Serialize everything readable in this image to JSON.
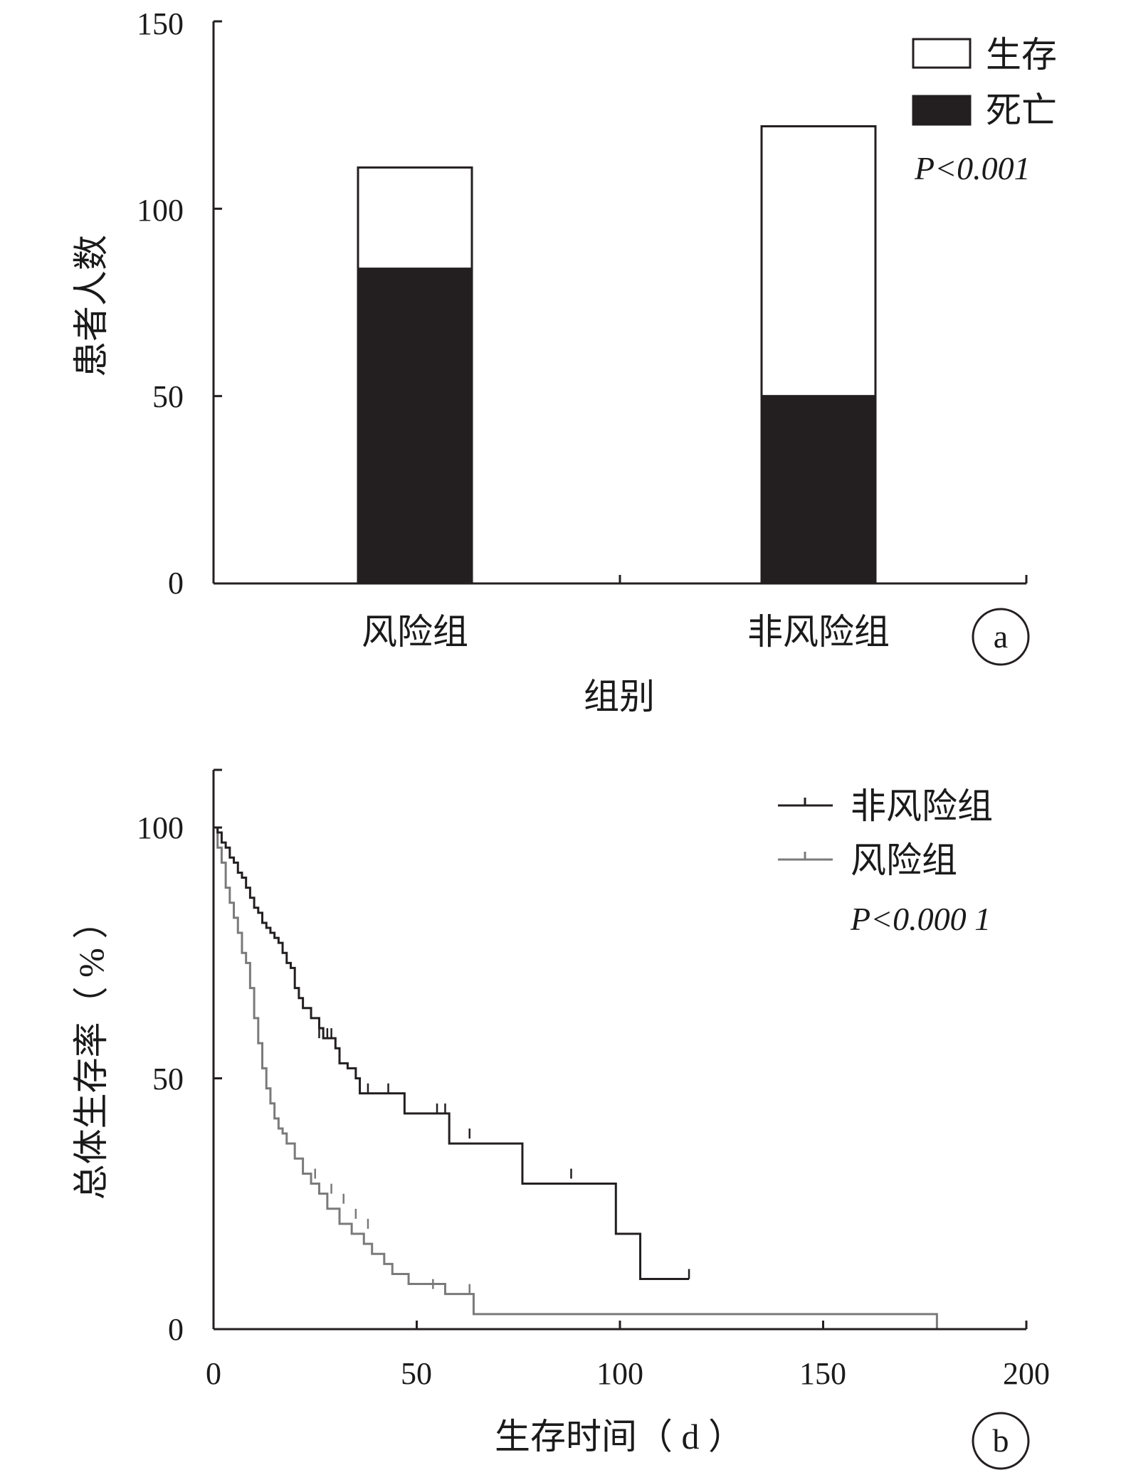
{
  "chart_data": [
    {
      "type": "bar",
      "panel_label": "a",
      "xlabel": "组别",
      "ylabel": "患者人数",
      "categories": [
        "风险组",
        "非风险组"
      ],
      "series": [
        {
          "name": "死亡",
          "values": [
            84,
            50
          ],
          "color": "#231f20"
        },
        {
          "name": "生存",
          "values": [
            27,
            72
          ],
          "color": "#ffffff"
        }
      ],
      "ylim": [
        0,
        150
      ],
      "yticks": [
        "0",
        "50",
        "100",
        "150"
      ],
      "stacked": true,
      "annotation": "P<0.001",
      "legend_position": "top-right",
      "grid": false
    },
    {
      "type": "line",
      "subtype": "kaplan-meier",
      "panel_label": "b",
      "xlabel": "生存时间（ d ）",
      "ylabel": "总体生存率（ % ）",
      "xlim": [
        0,
        200
      ],
      "ylim": [
        0,
        100
      ],
      "xticks": [
        "0",
        "50",
        "100",
        "150",
        "200"
      ],
      "yticks": [
        "0",
        "50",
        "100"
      ],
      "annotation": "P<0.000 1",
      "legend_position": "top-right",
      "grid": false,
      "series": [
        {
          "name": "非风险组",
          "color": "#231f20",
          "steps": [
            [
              0,
              100
            ],
            [
              1,
              99
            ],
            [
              2,
              97
            ],
            [
              3,
              96
            ],
            [
              4,
              94
            ],
            [
              5,
              93
            ],
            [
              6,
              91
            ],
            [
              7,
              90
            ],
            [
              8,
              88
            ],
            [
              9,
              86
            ],
            [
              10,
              84
            ],
            [
              11,
              83
            ],
            [
              12,
              81
            ],
            [
              13,
              80
            ],
            [
              14,
              79
            ],
            [
              15,
              78
            ],
            [
              16,
              77
            ],
            [
              17,
              75
            ],
            [
              18,
              73
            ],
            [
              19,
              72
            ],
            [
              20,
              68
            ],
            [
              21,
              66
            ],
            [
              22,
              64
            ],
            [
              24,
              62
            ],
            [
              26,
              60
            ],
            [
              27,
              58
            ],
            [
              30,
              56
            ],
            [
              31,
              53
            ],
            [
              33,
              52
            ],
            [
              35,
              50
            ],
            [
              36,
              47
            ],
            [
              47,
              43
            ],
            [
              58,
              37
            ],
            [
              76,
              29
            ],
            [
              99,
              19
            ],
            [
              105,
              10
            ]
          ],
          "end": 117,
          "censor": [
            [
              26,
              58
            ],
            [
              27,
              58
            ],
            [
              28,
              58
            ],
            [
              29,
              58
            ],
            [
              30,
              56
            ],
            [
              35,
              50
            ],
            [
              38,
              47
            ],
            [
              43,
              47
            ],
            [
              55,
              43
            ],
            [
              57,
              43
            ],
            [
              63,
              38
            ],
            [
              88,
              30
            ],
            [
              117,
              10
            ]
          ]
        },
        {
          "name": "风险组",
          "color": "#7a7a7a",
          "steps": [
            [
              0,
              100
            ],
            [
              1,
              96
            ],
            [
              2,
              93
            ],
            [
              3,
              88
            ],
            [
              4,
              85
            ],
            [
              5,
              82
            ],
            [
              6,
              79
            ],
            [
              7,
              75
            ],
            [
              8,
              73
            ],
            [
              9,
              68
            ],
            [
              10,
              62
            ],
            [
              11,
              57
            ],
            [
              12,
              52
            ],
            [
              13,
              48
            ],
            [
              14,
              45
            ],
            [
              15,
              42
            ],
            [
              16,
              40
            ],
            [
              17,
              39
            ],
            [
              18,
              37
            ],
            [
              20,
              34
            ],
            [
              22,
              31
            ],
            [
              24,
              29
            ],
            [
              26,
              27
            ],
            [
              28,
              24
            ],
            [
              31,
              21
            ],
            [
              34,
              19
            ],
            [
              37,
              17
            ],
            [
              39,
              15
            ],
            [
              42,
              13
            ],
            [
              44,
              11
            ],
            [
              48,
              9
            ],
            [
              57,
              7
            ],
            [
              64,
              3
            ],
            [
              178,
              0
            ]
          ],
          "end": 178,
          "censor": [
            [
              22,
              31
            ],
            [
              25,
              30
            ],
            [
              29,
              27
            ],
            [
              32,
              25
            ],
            [
              35,
              22
            ],
            [
              38,
              20
            ],
            [
              54,
              8
            ],
            [
              63,
              7
            ]
          ]
        }
      ]
    }
  ]
}
